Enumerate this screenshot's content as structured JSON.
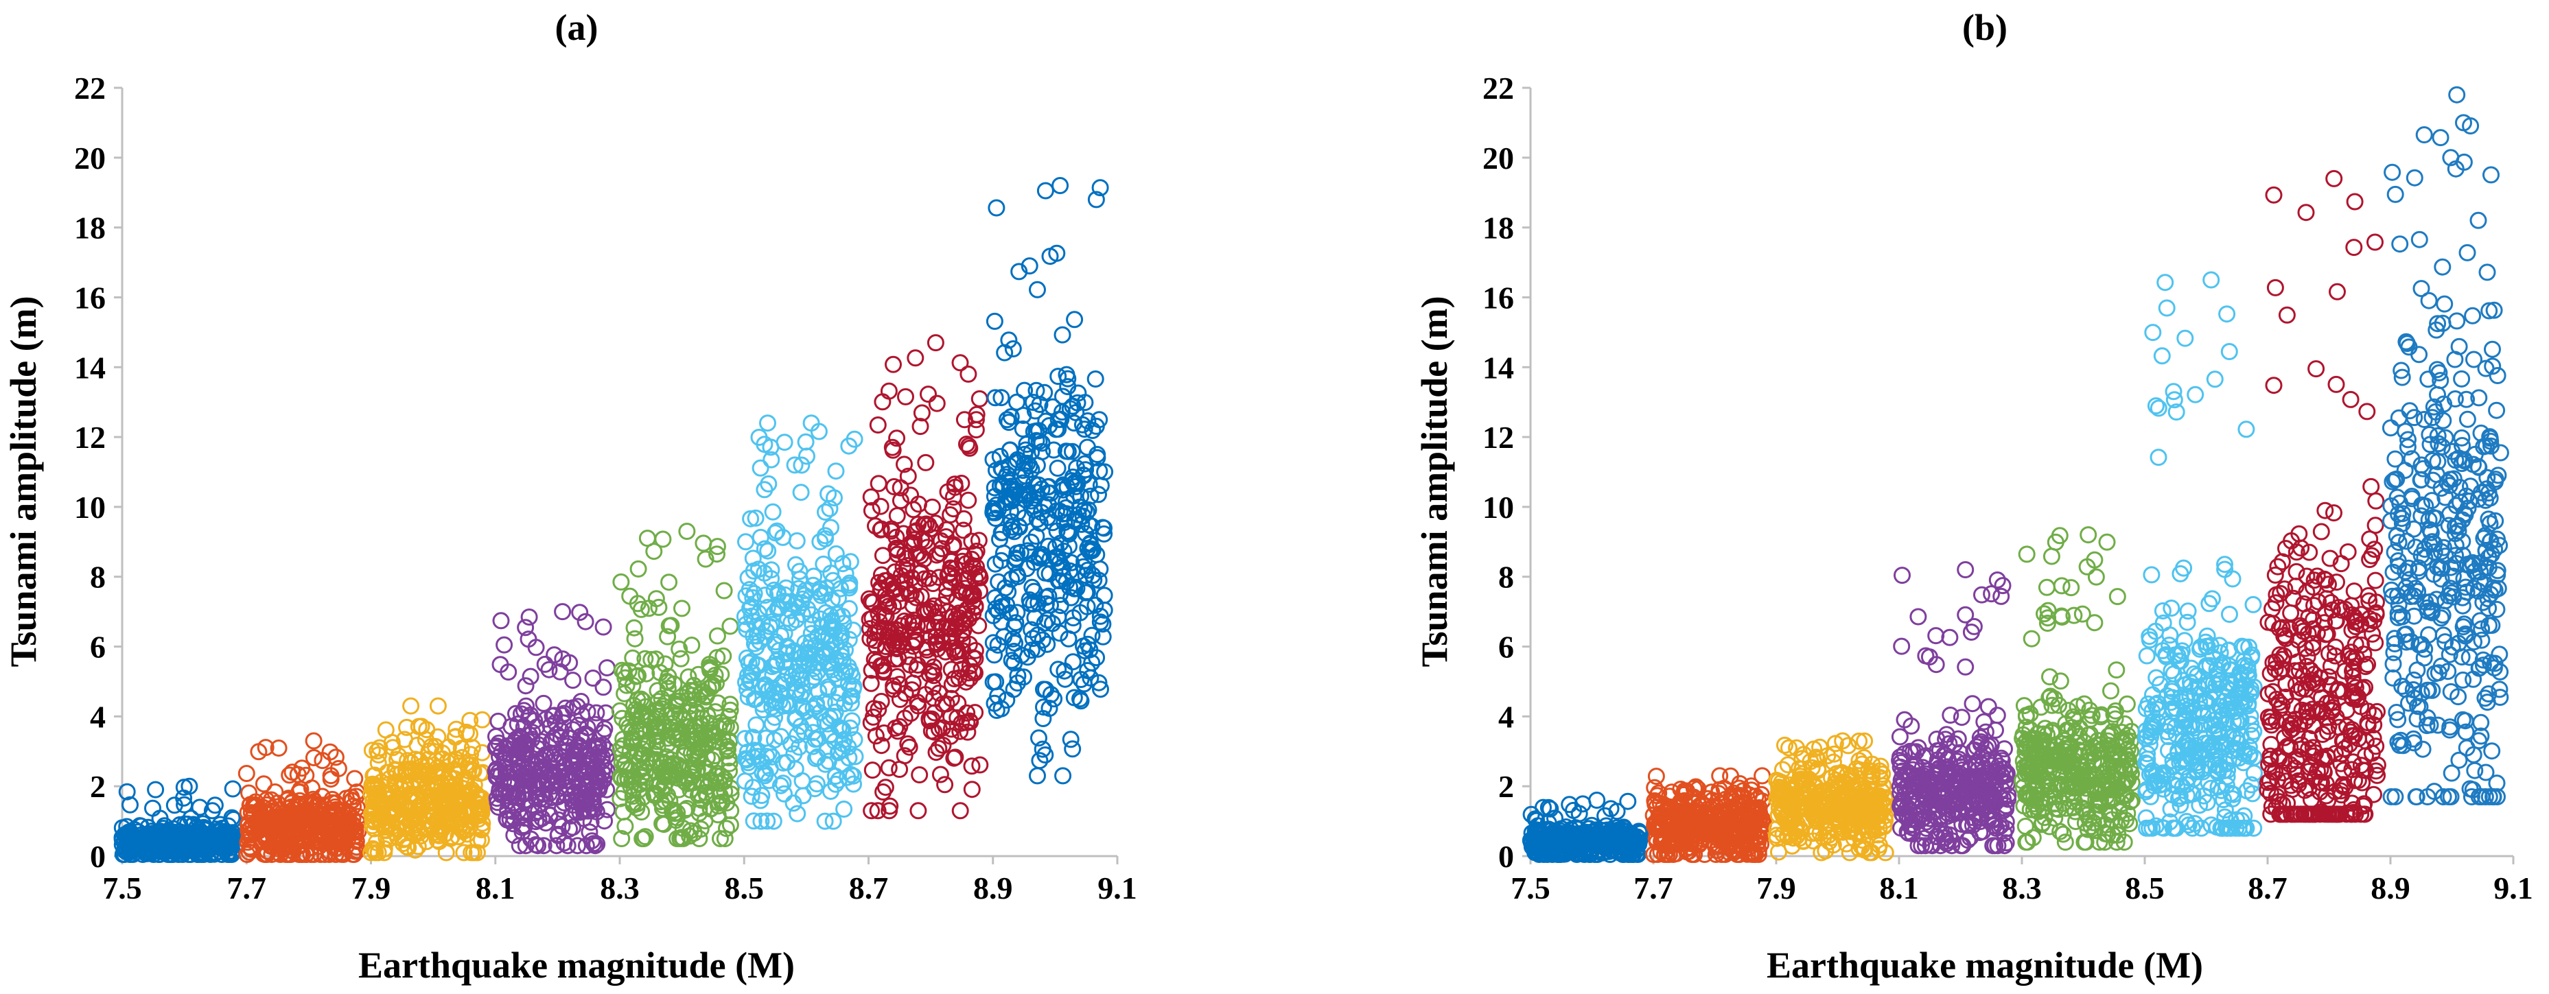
{
  "chart_data": [
    {
      "type": "scatter",
      "title": "(a)",
      "xlabel": "Earthquake magnitude (M)",
      "ylabel": "Tsunami amplitude (m)",
      "xlim": [
        7.5,
        9.1
      ],
      "ylim": [
        0,
        22
      ],
      "xticks": [
        "7.5",
        "7.7",
        "7.9",
        "8.1",
        "8.3",
        "8.5",
        "8.7",
        "8.9",
        "9.1"
      ],
      "yticks": [
        "0",
        "2",
        "4",
        "6",
        "8",
        "10",
        "12",
        "14",
        "16",
        "18",
        "20",
        "22"
      ],
      "grid": false,
      "legend": "none",
      "marker": "open-circle",
      "series": [
        {
          "name": "M 7.5-7.7",
          "color": "#0070C0",
          "x_range": [
            7.5,
            7.68
          ],
          "center": 0.4,
          "spread": 0.25,
          "min": 0.05,
          "max": 2.0,
          "count": 380
        },
        {
          "name": "M 7.7-7.9",
          "color": "#E2501F",
          "x_range": [
            7.7,
            7.88
          ],
          "center": 0.8,
          "spread": 0.5,
          "min": 0.05,
          "max": 3.3,
          "count": 380
        },
        {
          "name": "M 7.9-8.1",
          "color": "#F0B020",
          "x_range": [
            7.9,
            8.08
          ],
          "center": 1.6,
          "spread": 0.8,
          "min": 0.1,
          "max": 4.3,
          "count": 380
        },
        {
          "name": "M 8.1-8.3",
          "color": "#7F3F9E",
          "x_range": [
            8.1,
            8.28
          ],
          "center": 2.3,
          "spread": 1.0,
          "min": 0.3,
          "max": 7.0,
          "count": 380
        },
        {
          "name": "M 8.3-8.5",
          "color": "#70AD47",
          "x_range": [
            8.3,
            8.48
          ],
          "center": 3.1,
          "spread": 1.4,
          "min": 0.5,
          "max": 9.3,
          "count": 380
        },
        {
          "name": "M 8.5-8.7",
          "color": "#4FC3F0",
          "x_range": [
            8.5,
            8.68
          ],
          "center": 5.2,
          "spread": 2.0,
          "min": 1.0,
          "max": 12.4,
          "count": 380
        },
        {
          "name": "M 8.7-8.9",
          "color": "#B0152E",
          "x_range": [
            8.7,
            8.88
          ],
          "center": 6.8,
          "spread": 2.1,
          "min": 1.3,
          "max": 14.7,
          "count": 380
        },
        {
          "name": "M 8.9-9.1",
          "color": "#0070C0",
          "x_range": [
            8.9,
            9.08
          ],
          "center": 9.3,
          "spread": 2.6,
          "min": 2.3,
          "max": 19.2,
          "count": 380
        }
      ]
    },
    {
      "type": "scatter",
      "title": "(b)",
      "xlabel": "Earthquake magnitude (M)",
      "ylabel": "Tsunami amplitude (m)",
      "xlim": [
        7.5,
        9.1
      ],
      "ylim": [
        0,
        22
      ],
      "xticks": [
        "7.5",
        "7.7",
        "7.9",
        "8.1",
        "8.3",
        "8.5",
        "8.7",
        "8.9",
        "9.1"
      ],
      "yticks": [
        "0",
        "2",
        "4",
        "6",
        "8",
        "10",
        "12",
        "14",
        "16",
        "18",
        "20",
        "22"
      ],
      "grid": false,
      "legend": "none",
      "marker": "open-circle",
      "series": [
        {
          "name": "M 7.5-7.7",
          "color": "#0070C0",
          "x_range": [
            7.5,
            7.68
          ],
          "center": 0.4,
          "spread": 0.25,
          "min": 0.05,
          "max": 1.6,
          "count": 380
        },
        {
          "name": "M 7.7-7.9",
          "color": "#E2501F",
          "x_range": [
            7.7,
            7.88
          ],
          "center": 0.9,
          "spread": 0.5,
          "min": 0.05,
          "max": 2.3,
          "count": 380
        },
        {
          "name": "M 7.9-8.1",
          "color": "#F0B020",
          "x_range": [
            7.9,
            8.08
          ],
          "center": 1.4,
          "spread": 0.6,
          "min": 0.1,
          "max": 3.3,
          "count": 380
        },
        {
          "name": "M 8.1-8.3",
          "color": "#7F3F9E",
          "x_range": [
            8.1,
            8.28
          ],
          "center": 1.9,
          "spread": 0.8,
          "min": 0.3,
          "max": 8.2,
          "count": 380
        },
        {
          "name": "M 8.3-8.5",
          "color": "#70AD47",
          "x_range": [
            8.3,
            8.48
          ],
          "center": 2.4,
          "spread": 1.0,
          "min": 0.4,
          "max": 9.2,
          "count": 380
        },
        {
          "name": "M 8.5-8.7",
          "color": "#4FC3F0",
          "x_range": [
            8.5,
            8.68
          ],
          "center": 3.6,
          "spread": 1.8,
          "min": 0.8,
          "max": 16.5,
          "count": 380
        },
        {
          "name": "M 8.7-8.9",
          "color": "#B0152E",
          "x_range": [
            8.7,
            8.88
          ],
          "center": 4.5,
          "spread": 2.6,
          "min": 1.2,
          "max": 19.4,
          "count": 380
        },
        {
          "name": "M 8.9-9.1",
          "color": "#1E7BC2",
          "x_range": [
            8.9,
            9.08
          ],
          "center": 8.0,
          "spread": 3.8,
          "min": 1.7,
          "max": 21.8,
          "count": 380
        }
      ]
    }
  ]
}
